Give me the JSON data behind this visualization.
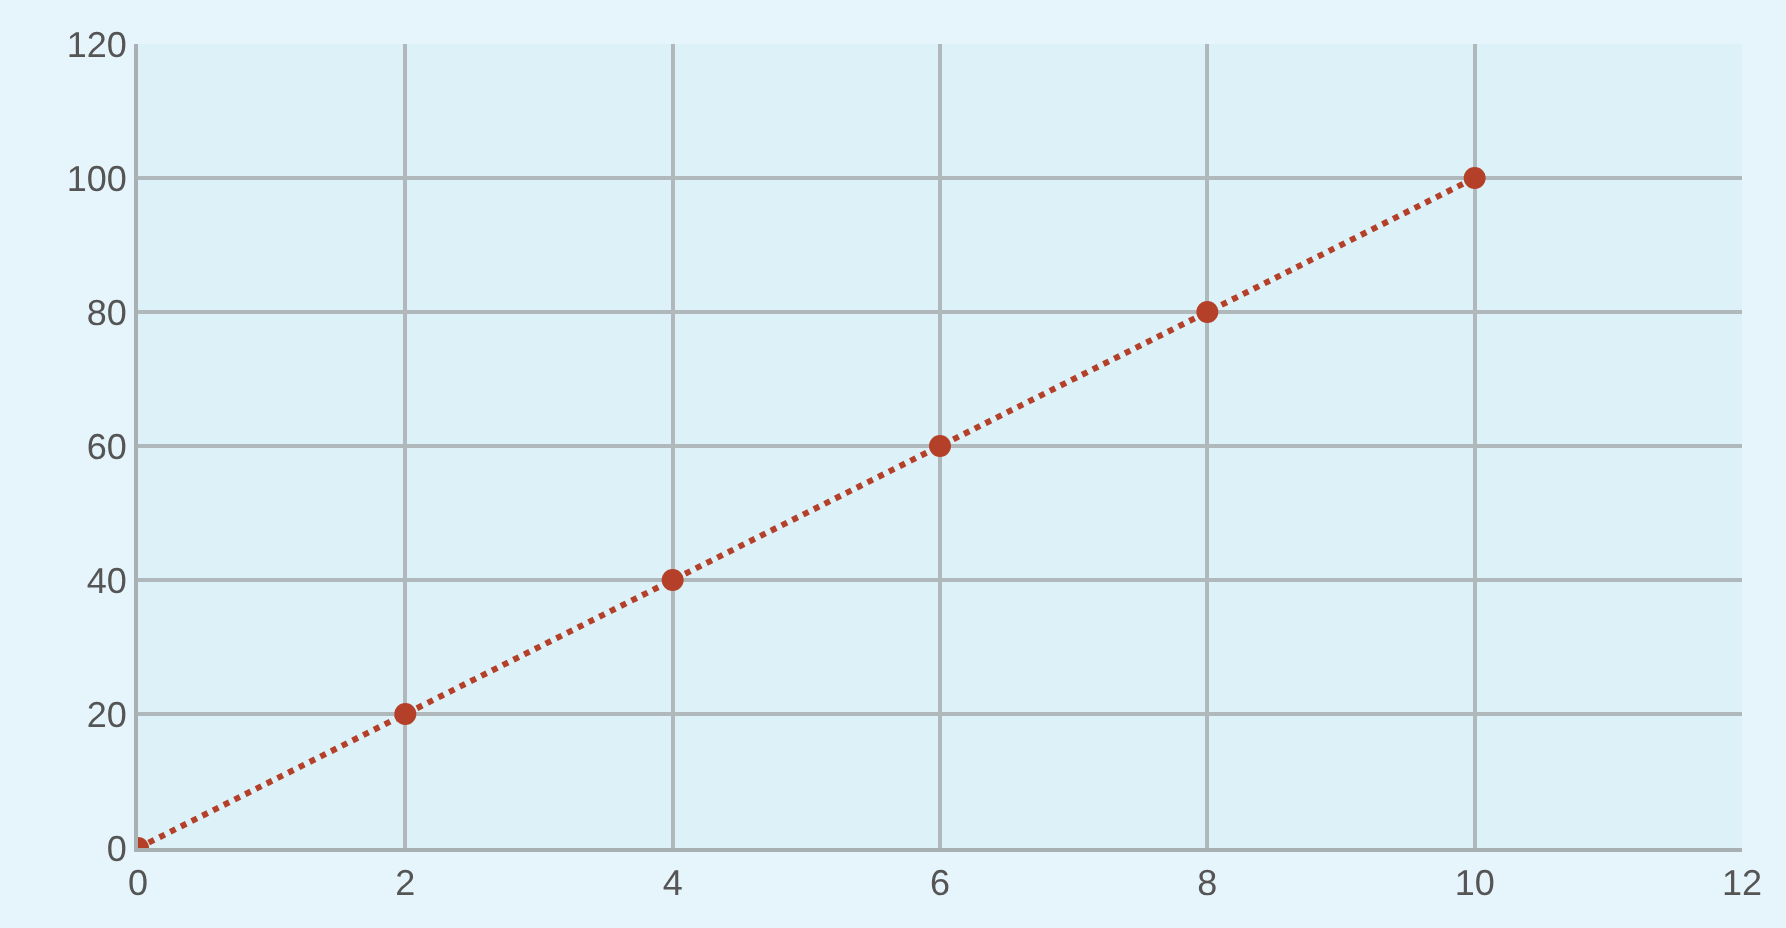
{
  "chart_data": {
    "type": "line",
    "x": [
      0,
      2,
      4,
      6,
      8,
      10
    ],
    "series": [
      {
        "color": "#b5402a",
        "values": [
          0,
          20,
          40,
          60,
          80,
          100
        ]
      }
    ],
    "xlim": [
      0,
      12
    ],
    "xticks": [
      0,
      2,
      4,
      6,
      8,
      10,
      12
    ],
    "ylim": [
      0,
      120
    ],
    "yticks": [
      0,
      20,
      40,
      60,
      80,
      100,
      120
    ],
    "grid": true,
    "marker": "circle",
    "line_style": "dotted"
  }
}
